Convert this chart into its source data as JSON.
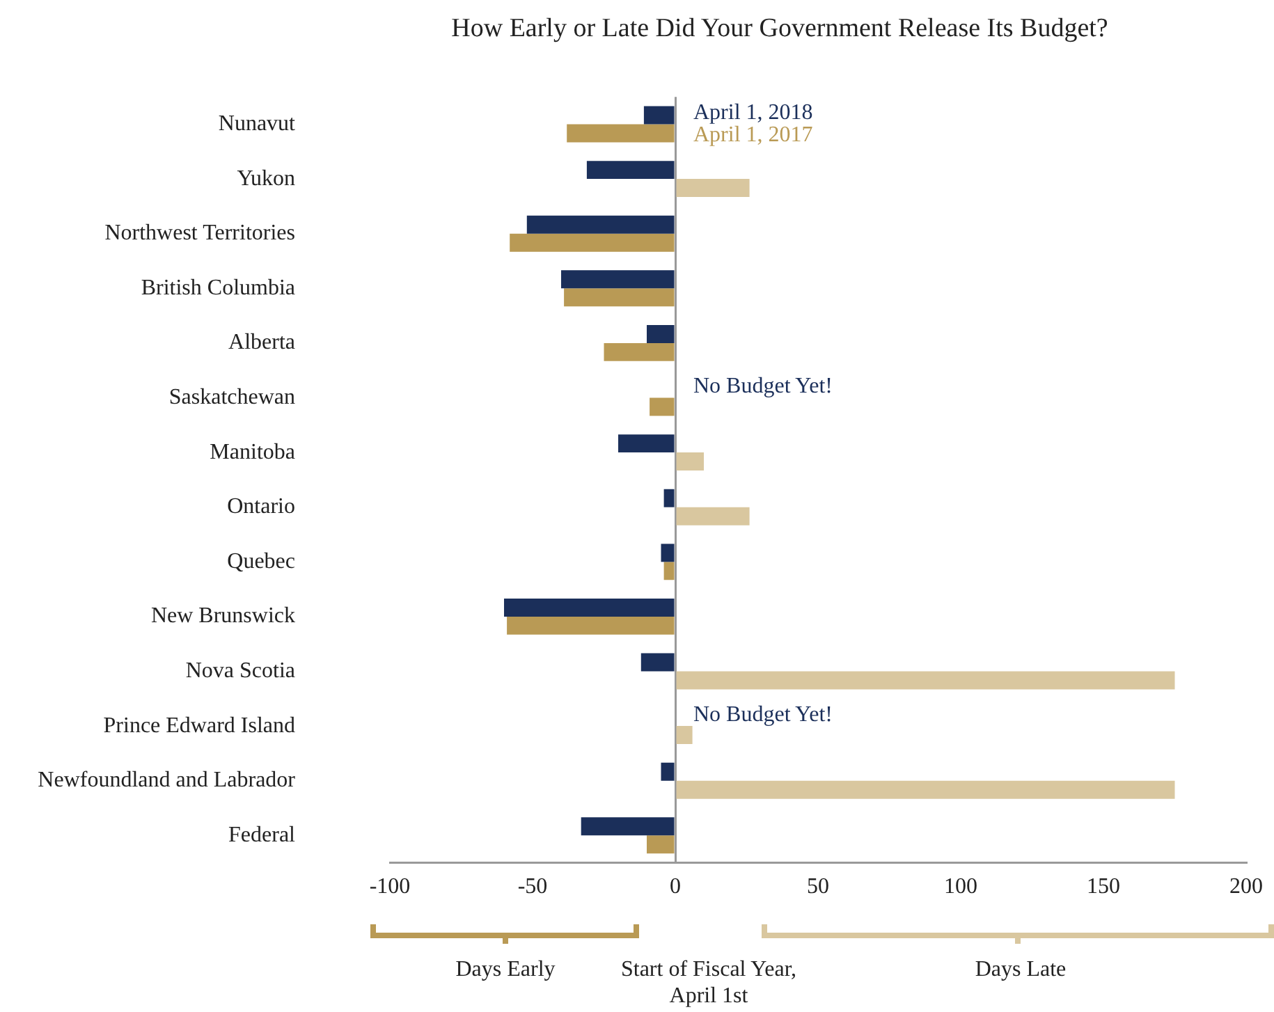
{
  "chart_data": {
    "type": "bar",
    "orientation": "horizontal",
    "title": "How Early or Late Did Your Government Release Its Budget?",
    "categories": [
      "Nunavut",
      "Yukon",
      "Northwest Territories",
      "British Columbia",
      "Alberta",
      "Saskatchewan",
      "Manitoba",
      "Ontario",
      "Quebec",
      "New Brunswick",
      "Nova Scotia",
      "Prince Edward Island",
      "Newfoundland and Labrador",
      "Federal"
    ],
    "series": [
      {
        "name": "April 1, 2018",
        "color": "#1b2f5a",
        "values": [
          -11,
          -31,
          -52,
          -40,
          -10,
          null,
          -20,
          -4,
          -5,
          -60,
          -12,
          null,
          -5,
          -33
        ]
      },
      {
        "name": "April 1, 2017",
        "color": "#b99a55",
        "colors": [
          "#b99a55",
          "#d9c79f",
          "#b99a55",
          "#b99a55",
          "#b99a55",
          "#b99a55",
          "#d9c79f",
          "#d9c79f",
          "#b99a55",
          "#b99a55",
          "#d9c79f",
          "#d9c79f",
          "#d9c79f",
          "#b99a55"
        ],
        "values": [
          -38,
          26,
          -58,
          -39,
          -25,
          -9,
          10,
          26,
          -4,
          -59,
          175,
          6,
          175,
          -10
        ]
      }
    ],
    "xlim": [
      -100,
      200
    ],
    "xticks": [
      -100,
      -50,
      0,
      50,
      100,
      150,
      200
    ],
    "legend": "top",
    "annotations": [
      {
        "text": "No Budget Yet!",
        "x": 0,
        "y": "Saskatchewan"
      },
      {
        "text": "No Budget Yet!",
        "x": 0,
        "y": "Prince Edward Island"
      },
      "Days Early",
      "Start of Fiscal Year, April 1st",
      "Days Late"
    ]
  }
}
